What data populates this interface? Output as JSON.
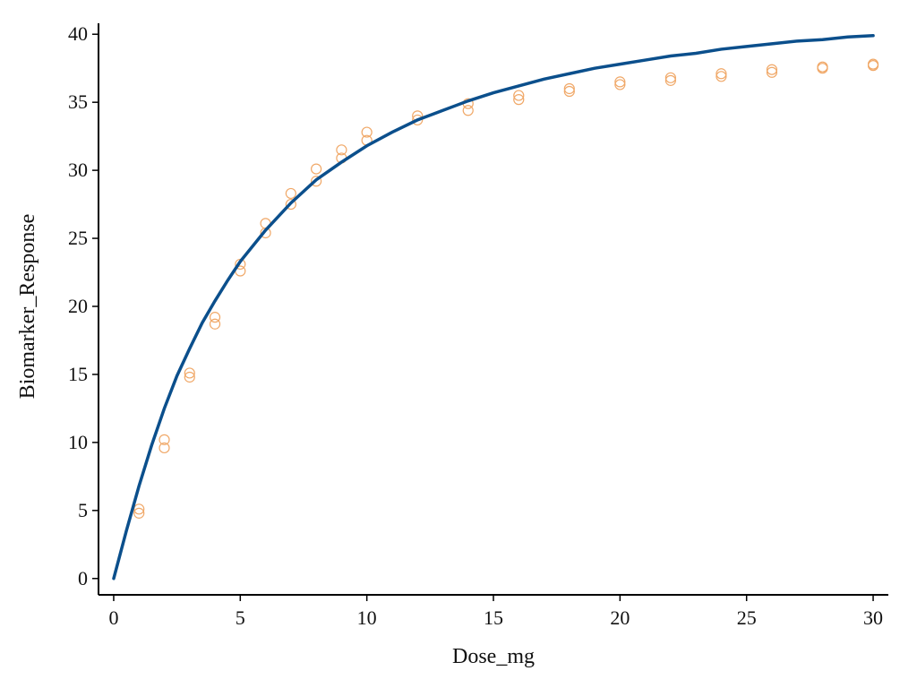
{
  "chart_data": {
    "type": "scatter",
    "xlabel": "Dose_mg",
    "ylabel": "Biomarker_Response",
    "xlim": [
      -0.6,
      30.6
    ],
    "ylim": [
      -1.2,
      41.2
    ],
    "xticks": [
      0,
      5,
      10,
      15,
      20,
      25,
      30
    ],
    "yticks": [
      0,
      5,
      10,
      15,
      20,
      25,
      30,
      35,
      40
    ],
    "grid": false,
    "legend": "none",
    "colors": {
      "points": "#f0a868",
      "fit": "#0b4f8c",
      "axis": "#000000"
    },
    "series": [
      {
        "kind": "scatter",
        "points": [
          [
            1,
            5.1
          ],
          [
            1,
            4.8
          ],
          [
            2,
            10.2
          ],
          [
            2,
            9.6
          ],
          [
            3,
            15.1
          ],
          [
            3,
            14.8
          ],
          [
            4,
            19.2
          ],
          [
            4,
            18.7
          ],
          [
            5,
            23.1
          ],
          [
            5,
            22.6
          ],
          [
            6,
            26.1
          ],
          [
            6,
            25.4
          ],
          [
            7,
            28.3
          ],
          [
            7,
            27.5
          ],
          [
            8,
            30.1
          ],
          [
            8,
            29.2
          ],
          [
            9,
            31.5
          ],
          [
            9,
            30.9
          ],
          [
            10,
            32.8
          ],
          [
            10,
            32.2
          ],
          [
            12,
            34.0
          ],
          [
            12,
            33.7
          ],
          [
            14,
            34.9
          ],
          [
            14,
            34.4
          ],
          [
            16,
            35.5
          ],
          [
            16,
            35.2
          ],
          [
            18,
            36.0
          ],
          [
            18,
            35.8
          ],
          [
            20,
            36.5
          ],
          [
            20,
            36.3
          ],
          [
            22,
            36.8
          ],
          [
            22,
            36.6
          ],
          [
            24,
            37.1
          ],
          [
            24,
            36.9
          ],
          [
            26,
            37.4
          ],
          [
            26,
            37.2
          ],
          [
            28,
            37.6
          ],
          [
            28,
            37.5
          ],
          [
            30,
            37.8
          ],
          [
            30,
            37.7
          ]
        ]
      },
      {
        "kind": "line",
        "x": [
          0,
          0.5,
          1,
          1.5,
          2,
          2.5,
          3,
          3.5,
          4,
          4.5,
          5,
          6,
          7,
          8,
          9,
          10,
          11,
          12,
          13,
          14,
          15,
          16,
          17,
          18,
          19,
          20,
          21,
          22,
          23,
          24,
          25,
          26,
          27,
          28,
          29,
          30
        ],
        "y": [
          0,
          3.5,
          6.8,
          9.8,
          12.5,
          14.9,
          16.9,
          18.8,
          20.4,
          21.9,
          23.3,
          25.6,
          27.6,
          29.3,
          30.6,
          31.8,
          32.8,
          33.7,
          34.4,
          35.1,
          35.7,
          36.2,
          36.7,
          37.1,
          37.5,
          37.8,
          38.1,
          38.4,
          38.6,
          38.9,
          39.1,
          39.3,
          39.5,
          39.6,
          39.8,
          39.9
        ]
      }
    ]
  }
}
